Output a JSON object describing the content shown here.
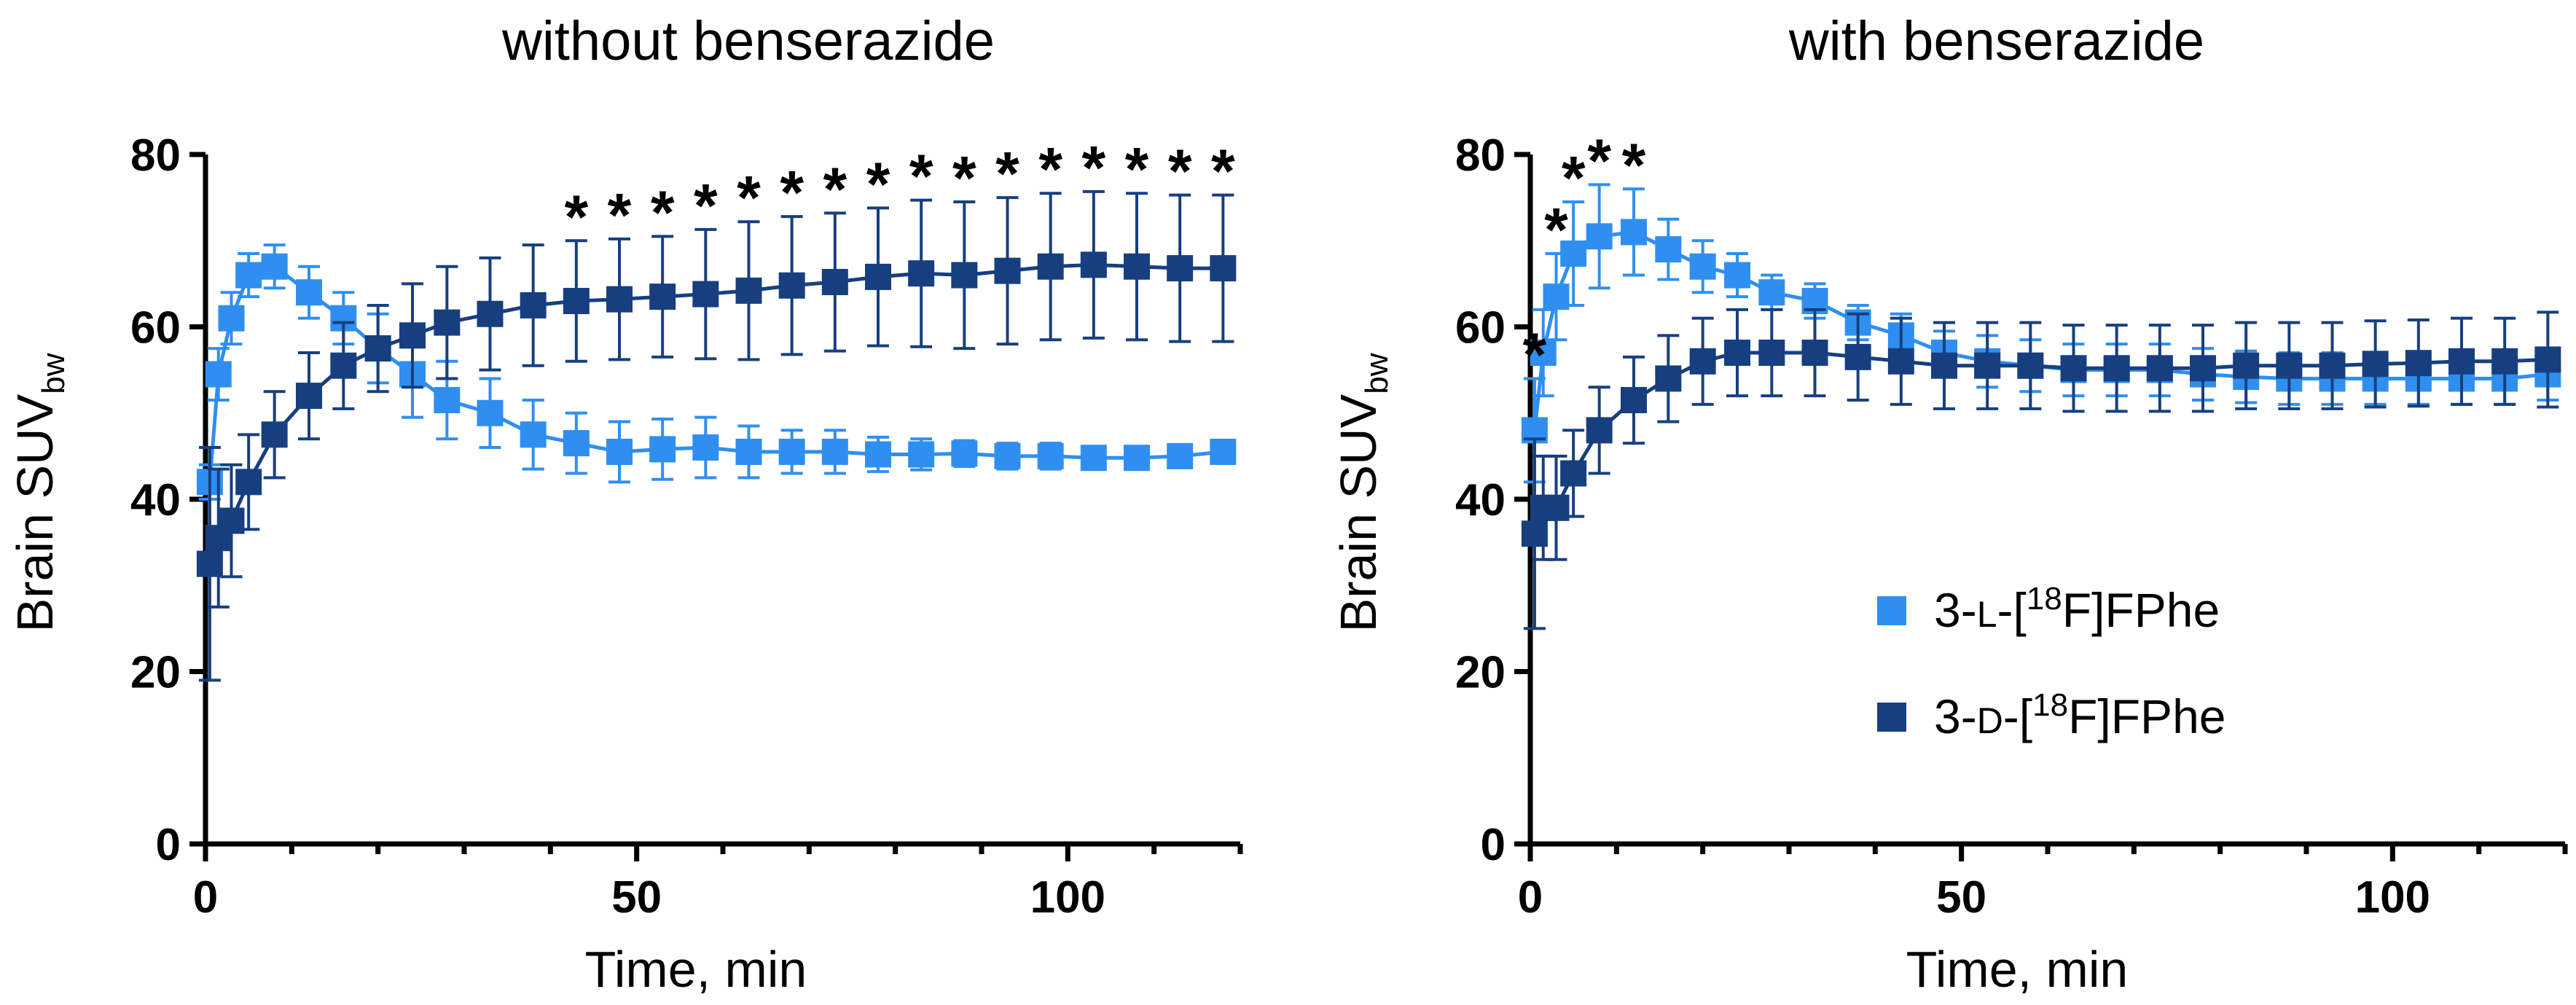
{
  "chart_data": [
    {
      "type": "line",
      "title": "without benserazide",
      "xlabel": "Time, min",
      "ylabel_main": "Brain SUV",
      "ylabel_sub": "bw",
      "xlim": [
        0,
        120
      ],
      "ylim": [
        0,
        80
      ],
      "xticks": [
        0,
        50,
        100
      ],
      "yticks": [
        0,
        20,
        40,
        60,
        80
      ],
      "x": [
        0.5,
        1.5,
        3,
        5,
        8,
        12,
        16,
        20,
        24,
        28,
        33,
        38,
        43,
        48,
        53,
        58,
        63,
        68,
        73,
        78,
        83,
        88,
        93,
        98,
        103,
        108,
        113,
        118
      ],
      "series": [
        {
          "name": "3-L-[18F]FPhe",
          "color": "#2F8FF0",
          "values": [
            42,
            54.5,
            61,
            66,
            67,
            64,
            61,
            57.5,
            54.5,
            51.5,
            50,
            47.5,
            46.5,
            45.5,
            45.8,
            46,
            45.5,
            45.5,
            45.5,
            45.2,
            45.2,
            45.3,
            45,
            45,
            44.8,
            44.8,
            45,
            45.5
          ],
          "errors": [
            2,
            3,
            3,
            2.5,
            2.5,
            3,
            3,
            4,
            5,
            4.5,
            4,
            4,
            3.5,
            3.5,
            3.5,
            3.5,
            3,
            2.5,
            2.5,
            2,
            1.8,
            1.5,
            1.5,
            1.5,
            1.2,
            1.2,
            1.2,
            1.2
          ]
        },
        {
          "name": "3-D-[18F]FPhe",
          "color": "#173F80",
          "values": [
            32.5,
            35.5,
            37.5,
            42,
            47.5,
            52,
            55.5,
            57.5,
            59,
            60.5,
            61.5,
            62.5,
            63,
            63.2,
            63.5,
            63.8,
            64.2,
            64.8,
            65.2,
            65.8,
            66.2,
            66,
            66.5,
            67,
            67.2,
            67,
            66.8,
            66.8
          ],
          "errors": [
            13.5,
            8,
            6.5,
            5.5,
            5,
            5,
            5,
            5,
            6,
            6.5,
            6.5,
            7,
            7,
            7,
            7,
            7.5,
            8,
            8,
            8,
            8,
            8.5,
            8.5,
            8.5,
            8.5,
            8.5,
            8.5,
            8.5,
            8.5
          ]
        }
      ],
      "significance": {
        "symbol": "*",
        "x": [
          43,
          48,
          53,
          58,
          63,
          68,
          73,
          78,
          83,
          88,
          93,
          98,
          103,
          108,
          113,
          118
        ]
      }
    },
    {
      "type": "line",
      "title": "with benserazide",
      "xlabel": "Time, min",
      "ylabel_main": "Brain SUV",
      "ylabel_sub": "bw",
      "xlim": [
        0,
        120
      ],
      "ylim": [
        0,
        80
      ],
      "xticks": [
        0,
        50,
        100
      ],
      "yticks": [
        0,
        20,
        40,
        60,
        80
      ],
      "x": [
        0.5,
        1.5,
        3,
        5,
        8,
        12,
        16,
        20,
        24,
        28,
        33,
        38,
        43,
        48,
        53,
        58,
        63,
        68,
        73,
        78,
        83,
        88,
        93,
        98,
        103,
        108,
        113,
        118
      ],
      "series": [
        {
          "name": "3-L-[18F]FPhe",
          "color": "#2F8FF0",
          "values": [
            48,
            57,
            63.5,
            68.5,
            70.5,
            71,
            69,
            67,
            66,
            64,
            63,
            60.5,
            59,
            57,
            56,
            55.5,
            55,
            55,
            55,
            54.5,
            54.2,
            54,
            54,
            54,
            54,
            54,
            54,
            54.5
          ],
          "errors": [
            6,
            5,
            5,
            6,
            6,
            5,
            3.5,
            3,
            2.5,
            2,
            2,
            2,
            2.5,
            2.5,
            3,
            3,
            3,
            3,
            3,
            3,
            3,
            3,
            3,
            3,
            3,
            3,
            3,
            3
          ]
        },
        {
          "name": "3-D-[18F]FPhe",
          "color": "#173F80",
          "values": [
            36,
            39,
            39,
            43,
            48,
            51.5,
            54,
            56,
            57,
            57,
            57,
            56.5,
            56,
            55.5,
            55.5,
            55.5,
            55.2,
            55.2,
            55.2,
            55.2,
            55.5,
            55.5,
            55.5,
            55.7,
            55.8,
            56,
            56,
            56.2
          ],
          "errors": [
            11,
            6,
            6,
            5,
            5,
            5,
            5,
            5,
            5,
            5,
            5,
            5,
            5,
            5,
            5,
            5,
            5,
            5,
            5,
            5,
            5,
            5,
            5,
            5,
            5,
            5,
            5,
            5.5
          ]
        }
      ],
      "significance": {
        "symbol": "*",
        "x": [
          0.5,
          3,
          5,
          8,
          12
        ]
      },
      "legend": {
        "position": "center-right",
        "entries": [
          {
            "prefix": "3-",
            "stereo": "L",
            "mid": "-[",
            "isotope": "18",
            "suffix": "F]FPhe",
            "color": "#2F8FF0"
          },
          {
            "prefix": "3-",
            "stereo": "D",
            "mid": "-[",
            "isotope": "18",
            "suffix": "F]FPhe",
            "color": "#173F80"
          }
        ]
      }
    }
  ]
}
